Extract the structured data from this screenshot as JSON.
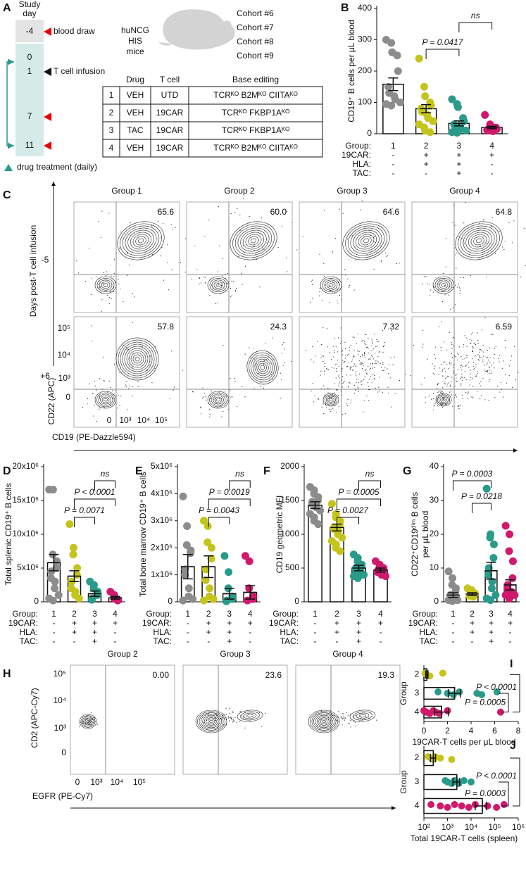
{
  "panel_a": {
    "letter": "A",
    "study_day": [
      "Study",
      "day"
    ],
    "days": [
      "-4",
      "0",
      "1",
      "7",
      "11"
    ],
    "events": [
      "blood draw",
      "T cell infusion"
    ],
    "mouse": [
      "huNCG",
      "HIS",
      "mice"
    ],
    "cohorts": [
      "Cohort #6",
      "Cohort #7",
      "Cohort #8",
      "Cohort #9"
    ],
    "table": {
      "header": [
        "Drug",
        "T cell",
        "Base editing"
      ],
      "rows": [
        [
          "1",
          "VEH",
          "UTD",
          "TCRᴷᴼ B2Mᴷᴼ CIITAᴷᴼ"
        ],
        [
          "2",
          "VEH",
          "19CAR",
          "TCRᴷᴼ FKBP1Aᴷᴼ"
        ],
        [
          "3",
          "TAC",
          "19CAR",
          "TCRᴷᴼ FKBP1Aᴷᴼ"
        ],
        [
          "4",
          "VEH",
          "19CAR",
          "TCRᴷᴼ B2Mᴷᴼ CIITAᴷᴼ"
        ]
      ]
    },
    "legend": "drug treatment (daily)"
  },
  "panel_c": {
    "letter": "C",
    "groups": [
      "Group 1",
      "Group 2",
      "Group 3",
      "Group 4"
    ],
    "rows": [
      "-5",
      "+6"
    ],
    "percentages": [
      [
        "65.6",
        "60.0",
        "64.6",
        "64.8"
      ],
      [
        "57.8",
        "24.3",
        "7.32",
        "6.59"
      ]
    ],
    "row_axis_label": "Days post-T cell infusion",
    "y_label": "CD22 (APC)",
    "x_label": "CD19 (PE-Dazzle594)",
    "yticks": [
      "10⁵",
      "10⁴",
      "10³",
      "0"
    ],
    "xticks": [
      "0",
      "10³",
      "10⁴",
      "10⁵"
    ]
  },
  "panel_h": {
    "letter": "H",
    "groups": [
      "Group 2",
      "Group 3",
      "Group 4"
    ],
    "percentages": [
      "0.00",
      "23.6",
      "19.3"
    ],
    "y_label": "CD2 (APC-Cy7)",
    "x_label": "EGFR (PE-Cy7)",
    "yticks": [
      "10⁵",
      "10⁴",
      "10³",
      "0"
    ],
    "xticks": [
      "0",
      "10³",
      "10⁴",
      "10⁵"
    ]
  },
  "chart_data": [
    {
      "type": "bar",
      "panel": "B",
      "ylabel": [
        "CD19⁺ B cells per μL blood"
      ],
      "categories": [
        "1",
        "2",
        "3",
        "4"
      ],
      "colors": [
        "#8c8c8c",
        "#c4c41c",
        "#2a9a8a",
        "#d0196c"
      ],
      "values": [
        158,
        80,
        33,
        20
      ],
      "errors": [
        20,
        13,
        8,
        4
      ],
      "points": [
        [
          300,
          290,
          260,
          250,
          200,
          150,
          130,
          120,
          110,
          100,
          95,
          90
        ],
        [
          240,
          150,
          120,
          100,
          90,
          80,
          70,
          60,
          50,
          40,
          30,
          20,
          10,
          5
        ],
        [
          110,
          95,
          85,
          50,
          40,
          30,
          25,
          20,
          15,
          10,
          5,
          3
        ],
        [
          60,
          30,
          25,
          20,
          15,
          12,
          10,
          8
        ]
      ],
      "ylim": [
        0,
        400
      ],
      "yticks": [
        0,
        100,
        200,
        300,
        400
      ],
      "annotations": [
        {
          "text": "ns",
          "between": [
            "3",
            "4"
          ]
        },
        {
          "text": "P = 0.0417",
          "between": [
            "2",
            "3"
          ]
        }
      ],
      "table": {
        "labels": [
          "Group:",
          "19CAR:",
          "HLA:",
          "TAC:"
        ],
        "rows": [
          [
            "-",
            "+",
            "+",
            "+"
          ],
          [
            "-",
            "+",
            "+",
            "-"
          ],
          [
            "-",
            "-",
            "+",
            "-"
          ]
        ]
      }
    },
    {
      "type": "bar",
      "panel": "D",
      "ylabel": [
        "Total splenic CD19⁺ B cells"
      ],
      "categories": [
        "1",
        "2",
        "3",
        "4"
      ],
      "colors": [
        "#8c8c8c",
        "#c4c41c",
        "#2a9a8a",
        "#d0196c"
      ],
      "values": [
        5800000,
        3800000,
        1200000,
        600000
      ],
      "errors": [
        1200000,
        800000,
        400000,
        200000
      ],
      "points": [
        [
          16600000,
          16600000,
          7000000,
          6000000,
          5000000,
          4500000,
          3500000,
          3000000,
          2000000,
          1000000,
          500000,
          200000
        ],
        [
          11500000,
          8000000,
          7000000,
          5000000,
          4000000,
          3000000,
          2000000,
          1500000,
          1000000,
          500000
        ],
        [
          3000000,
          2500000,
          2000000,
          1500000,
          1000000,
          500000,
          300000
        ],
        [
          1500000,
          1000000,
          500000,
          300000,
          200000
        ]
      ],
      "ylim": [
        0,
        20000000
      ],
      "yticks": [
        0,
        {
          "value": 5000000,
          "label": "5x10⁶"
        },
        {
          "value": 10000000,
          "label": "10x10⁶"
        },
        {
          "value": 15000000,
          "label": "15x10⁶"
        },
        {
          "value": 20000000,
          "label": "20x10⁶"
        }
      ],
      "annotations": [
        {
          "text": "ns",
          "between": [
            "3",
            "4"
          ]
        },
        {
          "text": "P < 0.0001",
          "between": [
            "2",
            "4"
          ]
        },
        {
          "text": "P = 0.0071",
          "between": [
            "2",
            "3"
          ]
        }
      ],
      "table": {
        "labels": [
          "Group:",
          "19CAR:",
          "HLA:",
          "TAC:"
        ],
        "rows": [
          [
            "-",
            "+",
            "+",
            "+"
          ],
          [
            "-",
            "+",
            "+",
            "-"
          ],
          [
            "-",
            "-",
            "+",
            "-"
          ]
        ]
      }
    },
    {
      "type": "bar",
      "panel": "E",
      "ylabel": [
        "Total bone marrow CD19⁺ B cells"
      ],
      "categories": [
        "1",
        "2",
        "3",
        "4"
      ],
      "colors": [
        "#8c8c8c",
        "#c4c41c",
        "#2a9a8a",
        "#d0196c"
      ],
      "values": [
        1300000,
        1300000,
        300000,
        350000
      ],
      "errors": [
        450000,
        400000,
        200000,
        250000
      ],
      "points": [
        [
          3900000,
          2800000,
          2100000,
          1900000,
          1800000,
          1200000,
          1000000,
          500000,
          200000,
          100000,
          50000
        ],
        [
          3000000,
          2800000,
          2200000,
          2000000,
          1600000,
          1200000,
          800000,
          500000,
          200000,
          100000,
          50000
        ],
        [
          1700000,
          1100000,
          500000,
          200000,
          100000,
          50000,
          20000
        ],
        [
          1700000,
          1500000,
          500000,
          200000,
          100000,
          50000
        ]
      ],
      "ylim": [
        0,
        5000000
      ],
      "yticks": [
        0,
        {
          "value": 1000000,
          "label": "1x10⁶"
        },
        {
          "value": 2000000,
          "label": "2x10⁶"
        },
        {
          "value": 3000000,
          "label": "3x10⁶"
        },
        {
          "value": 4000000,
          "label": "4x10⁶"
        },
        {
          "value": 5000000,
          "label": "5x10⁶"
        }
      ],
      "annotations": [
        {
          "text": "ns",
          "between": [
            "3",
            "4"
          ]
        },
        {
          "text": "P = 0.0019",
          "between": [
            "2",
            "4"
          ]
        },
        {
          "text": "P = 0.0043",
          "between": [
            "2",
            "3"
          ]
        }
      ],
      "table": {
        "labels": [
          "Group:",
          "19CAR:",
          "HLA:",
          "TAC:"
        ],
        "rows": [
          [
            "-",
            "+",
            "+",
            "+"
          ],
          [
            "-",
            "+",
            "+",
            "-"
          ],
          [
            "-",
            "-",
            "+",
            "-"
          ]
        ]
      }
    },
    {
      "type": "bar",
      "panel": "F",
      "ylabel": [
        "CD19 geometric MFI"
      ],
      "categories": [
        "1",
        "2",
        "3",
        "4"
      ],
      "colors": [
        "#8c8c8c",
        "#c4c41c",
        "#2a9a8a",
        "#d0196c"
      ],
      "values": [
        1430,
        1100,
        500,
        470
      ],
      "errors": [
        50,
        50,
        40,
        30
      ],
      "points": [
        [
          1700,
          1650,
          1600,
          1550,
          1500,
          1480,
          1450,
          1420,
          1400,
          1350,
          1300,
          1250,
          1200,
          1150
        ],
        [
          1450,
          1300,
          1250,
          1200,
          1150,
          1100,
          1080,
          1050,
          1000,
          950,
          900,
          850,
          800,
          750
        ],
        [
          700,
          650,
          600,
          550,
          520,
          500,
          480,
          450,
          420,
          400,
          380,
          350
        ],
        [
          600,
          550,
          520,
          500,
          480,
          460,
          440,
          420,
          400,
          380
        ]
      ],
      "ylim": [
        0,
        2000
      ],
      "yticks": [
        0,
        500,
        1000,
        1500,
        2000
      ],
      "annotations": [
        {
          "text": "ns",
          "between": [
            "3",
            "4"
          ]
        },
        {
          "text": "P = 0.0005",
          "between": [
            "2",
            "4"
          ]
        },
        {
          "text": "P = 0.0027",
          "between": [
            "2",
            "3"
          ]
        }
      ],
      "table": {
        "labels": [
          "Group:",
          "19CAR:",
          "HLA:",
          "TAC:"
        ],
        "rows": [
          [
            "-",
            "+",
            "+",
            "+"
          ],
          [
            "-",
            "+",
            "+",
            "-"
          ],
          [
            "-",
            "-",
            "+",
            "-"
          ]
        ]
      }
    },
    {
      "type": "bar",
      "panel": "G",
      "ylabel": [
        "CD22⁺CD19ᵈⁱᵐ B cells",
        "per μL blood"
      ],
      "categories": [
        "1",
        "2",
        "3",
        "4"
      ],
      "colors": [
        "#8c8c8c",
        "#c4c41c",
        "#2a9a8a",
        "#d0196c"
      ],
      "values": [
        2,
        2.3,
        9.2,
        5
      ],
      "errors": [
        0.7,
        0.4,
        2.5,
        1.5
      ],
      "points": [
        [
          9,
          7,
          5,
          4,
          3,
          2,
          2,
          1,
          1,
          0.5,
          0.5,
          0.2
        ],
        [
          4,
          3.5,
          3,
          2.5,
          2.3,
          2,
          1.8,
          1.5
        ],
        [
          33.5,
          20,
          19,
          17,
          13,
          10,
          8,
          6,
          4,
          2,
          1,
          0.5
        ],
        [
          22.5,
          20,
          15,
          12,
          7,
          5,
          4,
          3,
          3,
          2,
          2,
          1,
          1
        ]
      ],
      "ylim": [
        0,
        40
      ],
      "yticks": [
        0,
        10,
        20,
        30,
        40
      ],
      "annotations": [
        {
          "text": "P = 0.0003",
          "between": [
            "1",
            "3"
          ]
        },
        {
          "text": "P = 0.0218",
          "between": [
            "2",
            "3"
          ]
        }
      ],
      "table": {
        "labels": [
          "Group:",
          "19CAR:",
          "HLA:",
          "TAC:"
        ],
        "rows": [
          [
            "-",
            "+",
            "+",
            "+"
          ],
          [
            "-",
            "+",
            "+",
            "-"
          ],
          [
            "-",
            "-",
            "+",
            "-"
          ]
        ]
      }
    },
    {
      "type": "hbar",
      "panel": "I",
      "ylabel": "Group",
      "xlabel": "19CAR-T cells per μL blood",
      "categories": [
        "2",
        "3",
        "4"
      ],
      "colors": [
        "#c4c41c",
        "#2a9a8a",
        "#d0196c"
      ],
      "values": [
        0.25,
        2.6,
        1.5
      ],
      "errors": [
        0.1,
        0.5,
        0.6
      ],
      "points": [
        [
          0.1,
          0.2,
          0.5,
          1.6
        ],
        [
          1.2,
          2,
          2.5,
          3,
          4.5,
          4.9,
          6.2
        ],
        [
          0,
          0.2,
          0.5,
          0.8,
          1,
          1.3,
          2,
          6.5
        ]
      ],
      "xlim": [
        0,
        8
      ],
      "xticks": [
        0,
        2,
        4,
        6,
        8
      ],
      "log": false,
      "annotations": [
        {
          "text": "P < 0.0001",
          "between": [
            "2",
            "4"
          ]
        },
        {
          "text": "P = 0.0005",
          "between": [
            "3",
            "4"
          ]
        }
      ]
    },
    {
      "type": "hbar",
      "panel": "J",
      "ylabel": "Group",
      "xlabel": "Total 19CAR-T cells (spleen)",
      "categories": [
        "2",
        "3",
        "4"
      ],
      "colors": [
        "#c4c41c",
        "#2a9a8a",
        "#d0196c"
      ],
      "values": [
        250,
        2500,
        30000
      ],
      "errors": [
        60,
        800,
        15000
      ],
      "points": [
        [
          150,
          200,
          250,
          300,
          500,
          1500
        ],
        [
          800,
          1000,
          1500,
          2000,
          2500,
          3000,
          5000,
          10000
        ],
        [
          200,
          500,
          1000,
          2000,
          4000,
          8000,
          15000,
          50000,
          120000,
          250000
        ]
      ],
      "xlim": [
        100,
        1000000
      ],
      "xticks": [
        {
          "value": 100,
          "label": "10²"
        },
        {
          "value": 1000,
          "label": "10³"
        },
        {
          "value": 10000,
          "label": "10⁴"
        },
        {
          "value": 100000,
          "label": "10⁵"
        },
        {
          "value": 1000000,
          "label": "10⁶"
        }
      ],
      "log": true,
      "annotations": [
        {
          "text": "P < 0.0001",
          "between": [
            "2",
            "4"
          ]
        },
        {
          "text": "P = 0.0003",
          "between": [
            "3",
            "4"
          ]
        }
      ]
    }
  ]
}
